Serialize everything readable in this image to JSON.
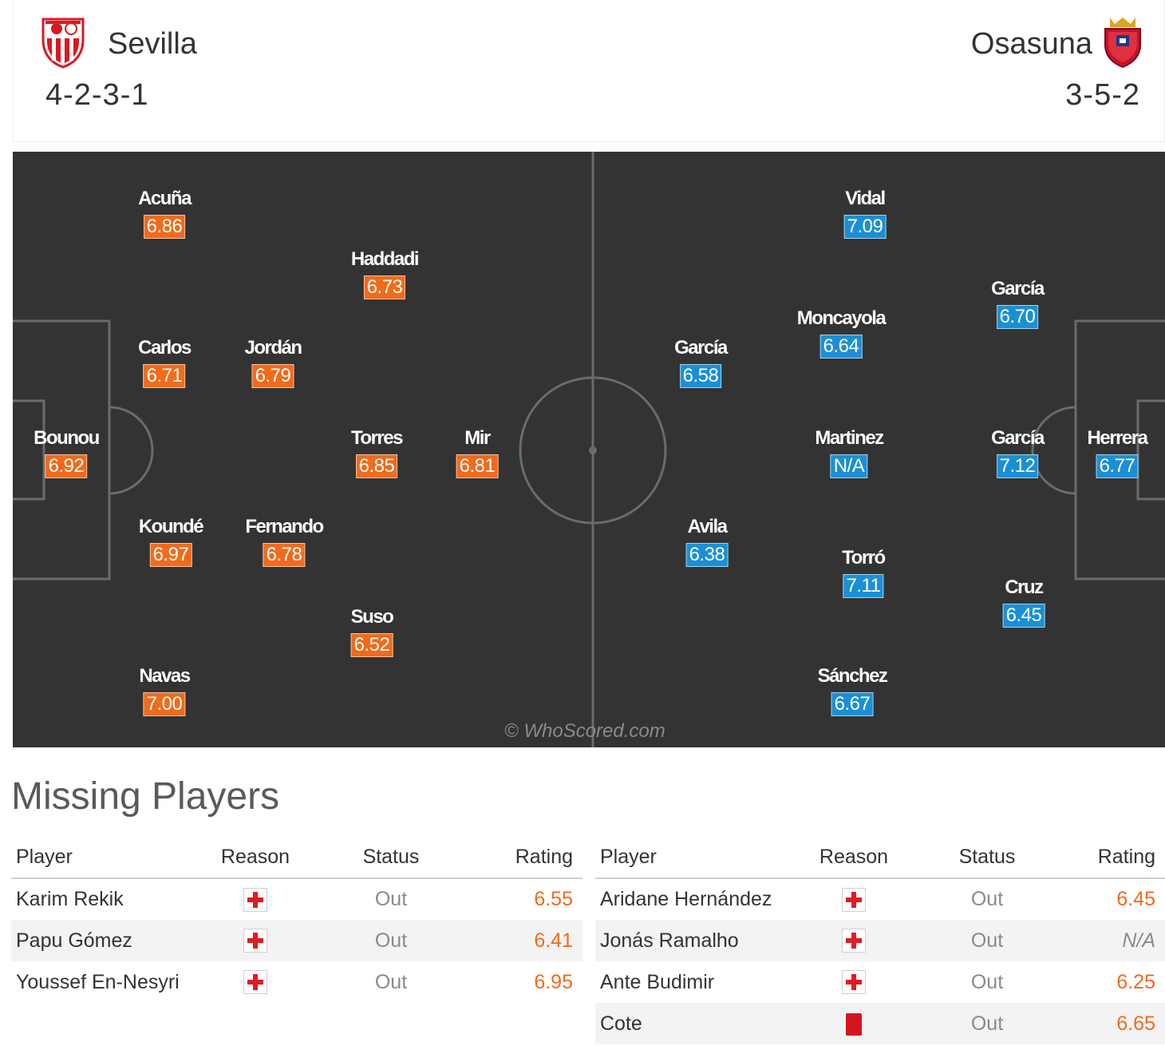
{
  "home": {
    "name": "Sevilla",
    "formation": "4-2-3-1",
    "colors": {
      "rating_bg": "#f26a1b",
      "crest_red": "#d71920"
    },
    "players": [
      {
        "name": "Acuña",
        "rating": "6.86"
      },
      {
        "name": "Haddadi",
        "rating": "6.73"
      },
      {
        "name": "Carlos",
        "rating": "6.71"
      },
      {
        "name": "Jordán",
        "rating": "6.79"
      },
      {
        "name": "Bounou",
        "rating": "6.92"
      },
      {
        "name": "Torres",
        "rating": "6.85"
      },
      {
        "name": "Mir",
        "rating": "6.81"
      },
      {
        "name": "Koundé",
        "rating": "6.97"
      },
      {
        "name": "Fernando",
        "rating": "6.78"
      },
      {
        "name": "Suso",
        "rating": "6.52"
      },
      {
        "name": "Navas",
        "rating": "7.00"
      }
    ]
  },
  "away": {
    "name": "Osasuna",
    "formation": "3-5-2",
    "colors": {
      "rating_bg": "#1b8fd6",
      "crest_red": "#c8102e"
    },
    "players": [
      {
        "name": "Vidal",
        "rating": "7.09"
      },
      {
        "name": "García",
        "rating": "6.70"
      },
      {
        "name": "Moncayola",
        "rating": "6.64"
      },
      {
        "name": "García",
        "rating": "6.58"
      },
      {
        "name": "Martinez",
        "rating": "N/A"
      },
      {
        "name": "García",
        "rating": "7.12"
      },
      {
        "name": "Herrera",
        "rating": "6.77"
      },
      {
        "name": "Avila",
        "rating": "6.38"
      },
      {
        "name": "Torró",
        "rating": "7.11"
      },
      {
        "name": "Cruz",
        "rating": "6.45"
      },
      {
        "name": "Sánchez",
        "rating": "6.67"
      }
    ]
  },
  "watermark": "© WhoScored.com",
  "missing": {
    "title": "Missing Players",
    "columns": {
      "player": "Player",
      "reason": "Reason",
      "status": "Status",
      "rating": "Rating"
    },
    "home": [
      {
        "player": "Karim Rekik",
        "reason": "injury-icon",
        "status": "Out",
        "rating": "6.55"
      },
      {
        "player": "Papu Gómez",
        "reason": "injury-icon",
        "status": "Out",
        "rating": "6.41"
      },
      {
        "player": "Youssef En-Nesyri",
        "reason": "injury-icon",
        "status": "Out",
        "rating": "6.95"
      }
    ],
    "away": [
      {
        "player": "Aridane Hernández",
        "reason": "injury-icon",
        "status": "Out",
        "rating": "6.45"
      },
      {
        "player": "Jonás Ramalho",
        "reason": "injury-icon",
        "status": "Out",
        "rating": "N/A"
      },
      {
        "player": "Ante Budimir",
        "reason": "injury-icon",
        "status": "Out",
        "rating": "6.25"
      },
      {
        "player": "Cote",
        "reason": "red-card-icon",
        "status": "Out",
        "rating": "6.65"
      }
    ]
  }
}
